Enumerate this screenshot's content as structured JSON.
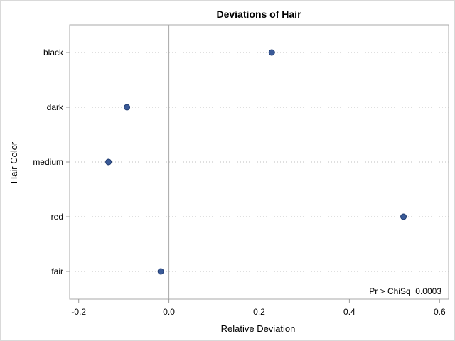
{
  "chart_data": {
    "type": "scatter",
    "title": "Deviations of Hair",
    "xlabel": "Relative Deviation",
    "ylabel": "Hair Color",
    "xlim": [
      -0.22,
      0.62
    ],
    "xticks": [
      -0.2,
      0.0,
      0.2,
      0.4,
      0.6
    ],
    "xtick_labels": [
      "-0.2",
      "0.0",
      "0.2",
      "0.4",
      "0.6"
    ],
    "categories": [
      "black",
      "dark",
      "medium",
      "red",
      "fair"
    ],
    "values": [
      0.228,
      -0.093,
      -0.134,
      0.52,
      -0.018
    ],
    "reference_line_x": 0.0,
    "grid": "horizontal dotted lines at each category",
    "annotation": "Pr > ChiSq  0.0003",
    "annotation_position": "bottom-right",
    "colors": {
      "marker_fill": "#3a5a98",
      "marker_stroke": "#1f3a6e",
      "axis": "#9a9a9a",
      "frame": "#a8a8a8",
      "grid": "#bfbfbf",
      "reference_line": "#a8a8a8"
    }
  }
}
